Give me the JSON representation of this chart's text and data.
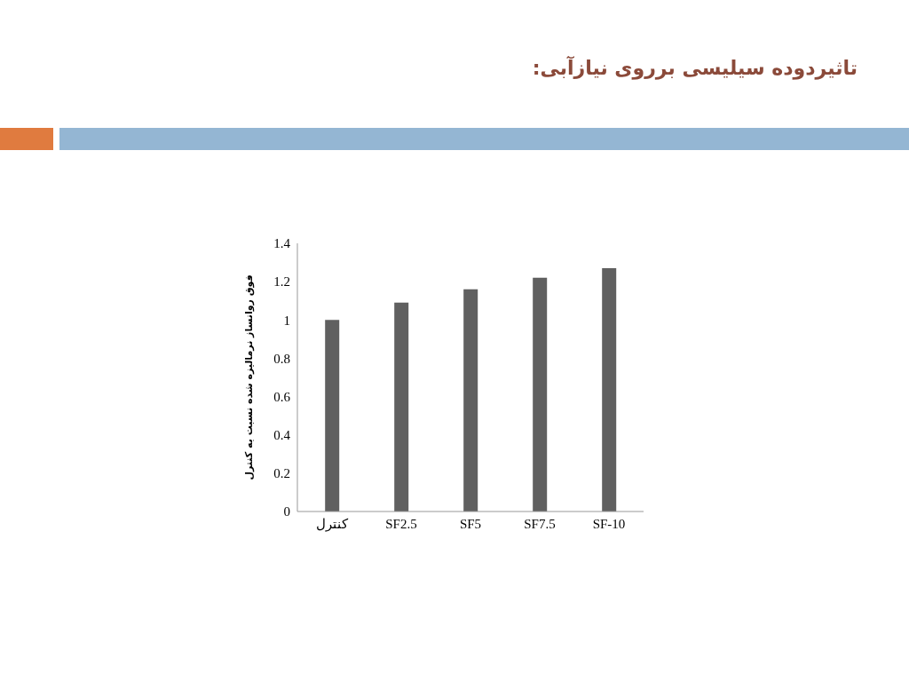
{
  "chart_data": {
    "type": "bar",
    "title": "تاثیردوده سیلیسی برروی نیازآبی:",
    "ylabel": "فوق روانساز نرمالیزه شده نسبت به کنترل",
    "categories": [
      "کنترل",
      "SF2.5",
      "SF5",
      "SF7.5",
      "SF-10"
    ],
    "values": [
      1.0,
      1.09,
      1.16,
      1.22,
      1.27
    ],
    "color": "#606060",
    "ylim": [
      0,
      1.4
    ],
    "yticks": [
      0,
      0.2,
      0.4,
      0.6,
      0.8,
      1,
      1.2,
      1.4
    ],
    "grid": false,
    "legend": false
  }
}
